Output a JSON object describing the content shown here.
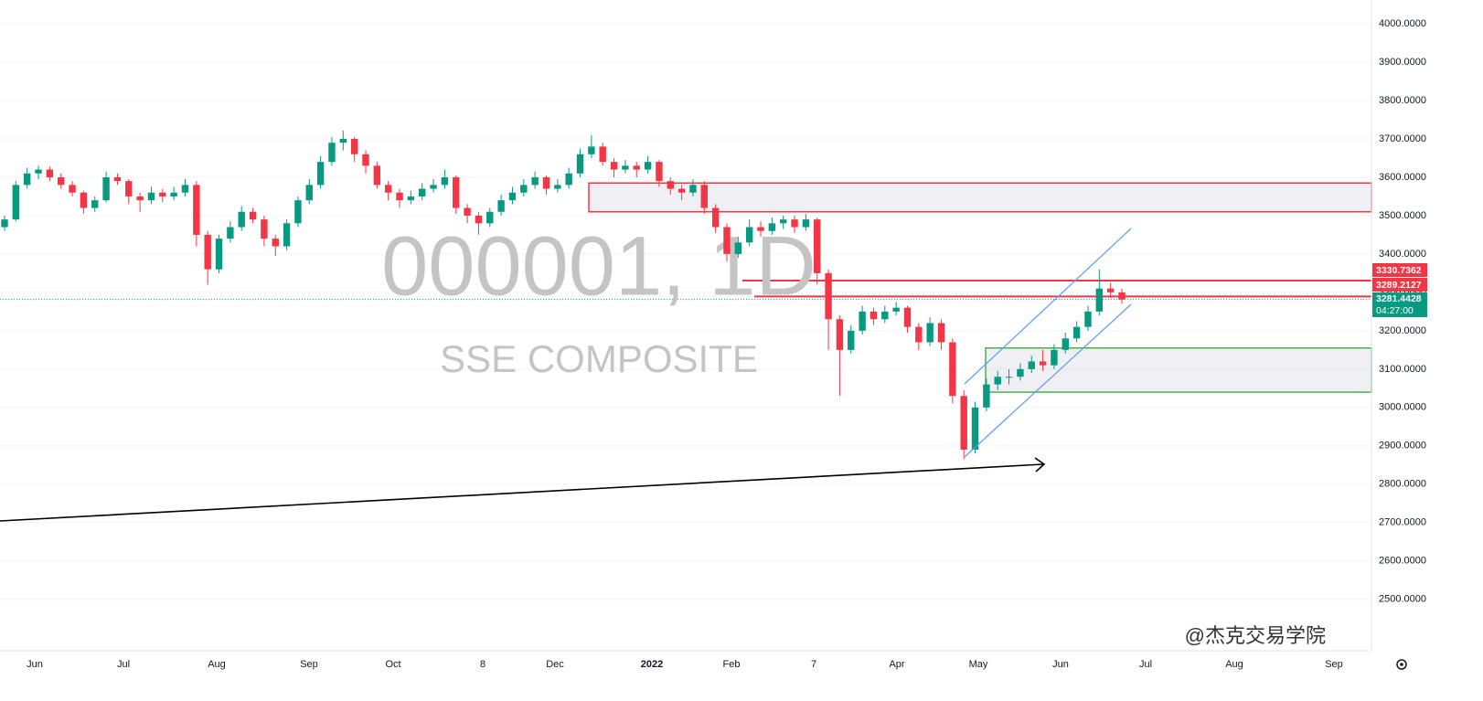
{
  "chart_data": {
    "type": "candlestick",
    "title": "000001, 1D",
    "subtitle": "SSE COMPOSITE",
    "watermark": "@杰克交易学院",
    "up_color": "#089981",
    "down_color": "#f23645",
    "ylim": [
      2366,
      4062
    ],
    "yticks": [
      {
        "value": 2500,
        "label": "2500.0000"
      },
      {
        "value": 2600,
        "label": "2600.0000"
      },
      {
        "value": 2700,
        "label": "2700.0000"
      },
      {
        "value": 2800,
        "label": "2800.0000"
      },
      {
        "value": 2900,
        "label": "2900.0000"
      },
      {
        "value": 3000,
        "label": "3000.0000"
      },
      {
        "value": 3100,
        "label": "3100.0000"
      },
      {
        "value": 3200,
        "label": "3200.0000"
      },
      {
        "value": 3300,
        "label": "3300.0000"
      },
      {
        "value": 3400,
        "label": "3400.0000"
      },
      {
        "value": 3500,
        "label": "3500.0000"
      },
      {
        "value": 3600,
        "label": "3600.0000"
      },
      {
        "value": 3700,
        "label": "3700.0000"
      },
      {
        "value": 3800,
        "label": "3800.0000"
      },
      {
        "value": 3900,
        "label": "3900.0000"
      },
      {
        "value": 4000,
        "label": "4000.0000"
      }
    ],
    "grid": true,
    "time_labels": [
      "Jun",
      "Jul",
      "Aug",
      "Sep",
      "Oct",
      "8",
      "Dec",
      "2022",
      "Feb",
      "7",
      "Apr",
      "May",
      "Jun",
      "Jul",
      "Aug",
      "Sep"
    ],
    "levels": [
      {
        "value": 3330.7362,
        "color": "#f23645"
      },
      {
        "value": 3289.2127,
        "color": "#f23645"
      }
    ],
    "zones": [
      {
        "low": 3510,
        "high": 3585,
        "color": "#f23645"
      },
      {
        "low": 3040,
        "high": 3155,
        "color": "#4caf50"
      }
    ],
    "countdown": "04:27:00",
    "candles": [
      [
        3470,
        3500,
        3460,
        3490
      ],
      [
        3490,
        3590,
        3485,
        3580
      ],
      [
        3580,
        3625,
        3570,
        3610
      ],
      [
        3610,
        3630,
        3595,
        3620
      ],
      [
        3620,
        3628,
        3590,
        3600
      ],
      [
        3600,
        3610,
        3570,
        3580
      ],
      [
        3580,
        3590,
        3550,
        3560
      ],
      [
        3560,
        3565,
        3505,
        3520
      ],
      [
        3520,
        3550,
        3510,
        3540
      ],
      [
        3540,
        3615,
        3535,
        3600
      ],
      [
        3600,
        3610,
        3580,
        3590
      ],
      [
        3590,
        3595,
        3530,
        3550
      ],
      [
        3550,
        3560,
        3510,
        3540
      ],
      [
        3540,
        3575,
        3530,
        3560
      ],
      [
        3560,
        3570,
        3535,
        3550
      ],
      [
        3550,
        3575,
        3540,
        3560
      ],
      [
        3560,
        3595,
        3550,
        3580
      ],
      [
        3580,
        3590,
        3420,
        3450
      ],
      [
        3450,
        3460,
        3320,
        3360
      ],
      [
        3360,
        3450,
        3350,
        3440
      ],
      [
        3440,
        3485,
        3430,
        3470
      ],
      [
        3470,
        3525,
        3460,
        3510
      ],
      [
        3510,
        3520,
        3480,
        3490
      ],
      [
        3490,
        3500,
        3420,
        3440
      ],
      [
        3440,
        3450,
        3395,
        3420
      ],
      [
        3420,
        3490,
        3410,
        3480
      ],
      [
        3480,
        3550,
        3470,
        3540
      ],
      [
        3540,
        3595,
        3530,
        3580
      ],
      [
        3580,
        3655,
        3570,
        3640
      ],
      [
        3640,
        3705,
        3630,
        3690
      ],
      [
        3690,
        3722,
        3670,
        3700
      ],
      [
        3700,
        3705,
        3640,
        3660
      ],
      [
        3660,
        3670,
        3610,
        3630
      ],
      [
        3630,
        3640,
        3570,
        3580
      ],
      [
        3580,
        3590,
        3540,
        3560
      ],
      [
        3560,
        3570,
        3520,
        3540
      ],
      [
        3540,
        3565,
        3530,
        3550
      ],
      [
        3550,
        3585,
        3540,
        3570
      ],
      [
        3570,
        3595,
        3560,
        3580
      ],
      [
        3580,
        3620,
        3570,
        3600
      ],
      [
        3600,
        3605,
        3505,
        3520
      ],
      [
        3520,
        3530,
        3480,
        3500
      ],
      [
        3500,
        3510,
        3450,
        3480
      ],
      [
        3480,
        3520,
        3470,
        3510
      ],
      [
        3510,
        3555,
        3500,
        3540
      ],
      [
        3540,
        3575,
        3530,
        3560
      ],
      [
        3560,
        3595,
        3550,
        3580
      ],
      [
        3580,
        3615,
        3570,
        3600
      ],
      [
        3600,
        3605,
        3555,
        3570
      ],
      [
        3570,
        3595,
        3560,
        3580
      ],
      [
        3580,
        3625,
        3570,
        3610
      ],
      [
        3610,
        3675,
        3600,
        3660
      ],
      [
        3660,
        3710,
        3650,
        3680
      ],
      [
        3680,
        3690,
        3630,
        3640
      ],
      [
        3640,
        3650,
        3600,
        3620
      ],
      [
        3620,
        3645,
        3610,
        3630
      ],
      [
        3630,
        3640,
        3600,
        3620
      ],
      [
        3620,
        3655,
        3610,
        3640
      ],
      [
        3640,
        3645,
        3575,
        3590
      ],
      [
        3590,
        3600,
        3555,
        3570
      ],
      [
        3570,
        3580,
        3540,
        3560
      ],
      [
        3560,
        3595,
        3550,
        3580
      ],
      [
        3580,
        3590,
        3505,
        3520
      ],
      [
        3520,
        3530,
        3455,
        3470
      ],
      [
        3470,
        3480,
        3380,
        3400
      ],
      [
        3400,
        3445,
        3390,
        3430
      ],
      [
        3430,
        3490,
        3420,
        3470
      ],
      [
        3470,
        3485,
        3445,
        3460
      ],
      [
        3460,
        3495,
        3450,
        3480
      ],
      [
        3480,
        3500,
        3465,
        3490
      ],
      [
        3490,
        3500,
        3455,
        3470
      ],
      [
        3470,
        3505,
        3460,
        3490
      ],
      [
        3490,
        3495,
        3320,
        3350
      ],
      [
        3350,
        3360,
        3150,
        3230
      ],
      [
        3230,
        3240,
        3030,
        3150
      ],
      [
        3150,
        3215,
        3140,
        3200
      ],
      [
        3200,
        3265,
        3190,
        3250
      ],
      [
        3250,
        3260,
        3215,
        3230
      ],
      [
        3230,
        3265,
        3220,
        3250
      ],
      [
        3250,
        3275,
        3240,
        3260
      ],
      [
        3260,
        3265,
        3195,
        3210
      ],
      [
        3210,
        3220,
        3150,
        3170
      ],
      [
        3170,
        3235,
        3160,
        3220
      ],
      [
        3220,
        3230,
        3150,
        3170
      ],
      [
        3170,
        3180,
        3010,
        3030
      ],
      [
        3030,
        3045,
        2865,
        2890
      ],
      [
        2890,
        3015,
        2880,
        3000
      ],
      [
        3000,
        3075,
        2990,
        3060
      ],
      [
        3060,
        3095,
        3045,
        3080
      ],
      [
        3080,
        3100,
        3060,
        3080
      ],
      [
        3080,
        3115,
        3070,
        3100
      ],
      [
        3100,
        3135,
        3090,
        3120
      ],
      [
        3120,
        3150,
        3095,
        3110
      ],
      [
        3110,
        3165,
        3100,
        3150
      ],
      [
        3150,
        3195,
        3140,
        3180
      ],
      [
        3180,
        3225,
        3170,
        3210
      ],
      [
        3210,
        3265,
        3200,
        3250
      ],
      [
        3250,
        3360,
        3240,
        3310
      ],
      [
        3310,
        3325,
        3285,
        3300
      ],
      [
        3300,
        3310,
        3270,
        3281.4428
      ]
    ]
  }
}
